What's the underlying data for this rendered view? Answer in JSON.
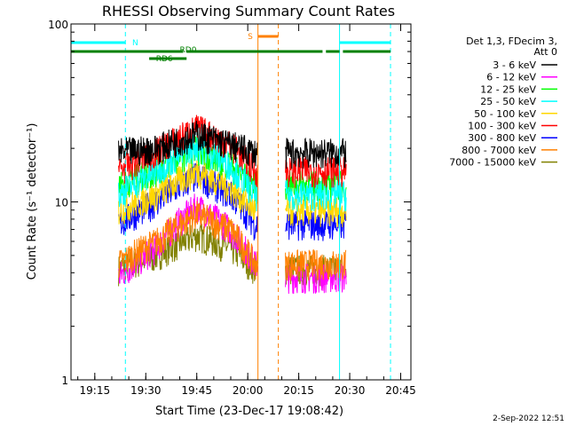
{
  "chart_data": {
    "type": "line",
    "title": "RHESSI Observing Summary Count Rates",
    "xlabel": "Start Time (23-Dec-17 19:08:42)",
    "ylabel": "Count Rate (s⁻¹ detector⁻¹)",
    "y_scale": "log",
    "ylim": [
      1,
      100
    ],
    "xlim": [
      "19:08",
      "20:48"
    ],
    "x_ticks": [
      "19:15",
      "19:30",
      "19:45",
      "20:00",
      "20:15",
      "20:30",
      "20:45"
    ],
    "y_ticks": [
      "1",
      "10",
      "100"
    ],
    "legend_header": [
      "Det 1,3, FDecim 3,",
      "Att 0"
    ],
    "legend_position": "right",
    "footer": "2-Sep-2022 12:51",
    "data_gaps": [
      [
        "20:03",
        "20:11"
      ]
    ],
    "flags": [
      {
        "label": "N",
        "color": "#00ffff",
        "segments": [
          [
            "19:08",
            "19:24"
          ],
          [
            "20:27",
            "20:42"
          ]
        ]
      },
      {
        "label": "S",
        "color": "#ff8000",
        "segments": [
          [
            "20:03",
            "20:09"
          ]
        ]
      },
      {
        "label": "RD0",
        "color": "#008000",
        "segments": [
          [
            "19:08",
            "19:39"
          ],
          [
            "19:37",
            "19:41"
          ],
          [
            "19:42",
            "20:22"
          ],
          [
            "20:23",
            "20:27"
          ],
          [
            "20:28",
            "20:42"
          ]
        ]
      },
      {
        "label": "RD6",
        "color": "#008000",
        "segments": [
          [
            "19:31",
            "19:42"
          ]
        ]
      }
    ],
    "event_lines": [
      {
        "time": "19:08",
        "color": "#00ffff",
        "style": "solid"
      },
      {
        "time": "19:24",
        "color": "#00ffff",
        "style": "dashed"
      },
      {
        "time": "20:27",
        "color": "#00ffff",
        "style": "solid"
      },
      {
        "time": "20:42",
        "color": "#00ffff",
        "style": "dashed"
      },
      {
        "time": "20:03",
        "color": "#ff8000",
        "style": "solid"
      },
      {
        "time": "20:09",
        "color": "#ff8000",
        "style": "dashed"
      }
    ],
    "series": [
      {
        "name": "3 - 6 keV",
        "color": "#000000",
        "x": [
          "19:22",
          "19:33",
          "19:45",
          "19:55",
          "20:02",
          "20:12",
          "20:20",
          "20:29"
        ],
        "values": [
          19,
          20,
          24,
          21,
          19,
          19,
          19,
          19
        ]
      },
      {
        "name": "6 - 12 keV",
        "color": "#ff00ff",
        "x": [
          "19:22",
          "19:33",
          "19:45",
          "19:55",
          "20:02",
          "20:12",
          "20:20",
          "20:29"
        ],
        "values": [
          3.8,
          5.5,
          9.5,
          7,
          4.5,
          3.8,
          3.8,
          3.8
        ]
      },
      {
        "name": "12 - 25 keV",
        "color": "#00ff00",
        "x": [
          "19:22",
          "19:33",
          "19:45",
          "19:55",
          "20:02",
          "20:12",
          "20:20",
          "20:29"
        ],
        "values": [
          12.5,
          15,
          20,
          16,
          12.5,
          12.5,
          12.5,
          12.5
        ]
      },
      {
        "name": "25 - 50 keV",
        "color": "#00ffff",
        "x": [
          "19:22",
          "19:33",
          "19:45",
          "19:55",
          "20:02",
          "20:12",
          "20:20",
          "20:29"
        ],
        "values": [
          11,
          15,
          21,
          16,
          11,
          11,
          11,
          11
        ]
      },
      {
        "name": "50 - 100 keV",
        "color": "#ffd700",
        "x": [
          "19:22",
          "19:33",
          "19:45",
          "19:55",
          "20:02",
          "20:12",
          "20:20",
          "20:29"
        ],
        "values": [
          9,
          11,
          15,
          12,
          9,
          9,
          9,
          9
        ]
      },
      {
        "name": "100 - 300 keV",
        "color": "#ff0000",
        "x": [
          "19:22",
          "19:33",
          "19:45",
          "19:55",
          "20:02",
          "20:12",
          "20:20",
          "20:29"
        ],
        "values": [
          15,
          19,
          26,
          21,
          15,
          15,
          15,
          15
        ]
      },
      {
        "name": "300 - 800 keV",
        "color": "#0000ff",
        "x": [
          "19:22",
          "19:33",
          "19:45",
          "19:55",
          "20:02",
          "20:12",
          "20:20",
          "20:29"
        ],
        "values": [
          7.5,
          10,
          14,
          11,
          7.5,
          7.5,
          7.5,
          7.5
        ]
      },
      {
        "name": "800 - 7000 keV",
        "color": "#ff8000",
        "x": [
          "19:22",
          "19:33",
          "19:45",
          "19:55",
          "20:02",
          "20:12",
          "20:20",
          "20:29"
        ],
        "values": [
          4.5,
          6,
          8.5,
          7,
          4.5,
          4.5,
          4.5,
          4.5
        ]
      },
      {
        "name": "7000 - 15000 keV",
        "color": "#808000",
        "x": [
          "19:22",
          "19:33",
          "19:45",
          "19:55",
          "20:02",
          "20:12",
          "20:20",
          "20:29"
        ],
        "values": [
          4.2,
          5,
          6.5,
          5.5,
          4.2,
          4.2,
          4.2,
          4.2
        ]
      }
    ]
  }
}
